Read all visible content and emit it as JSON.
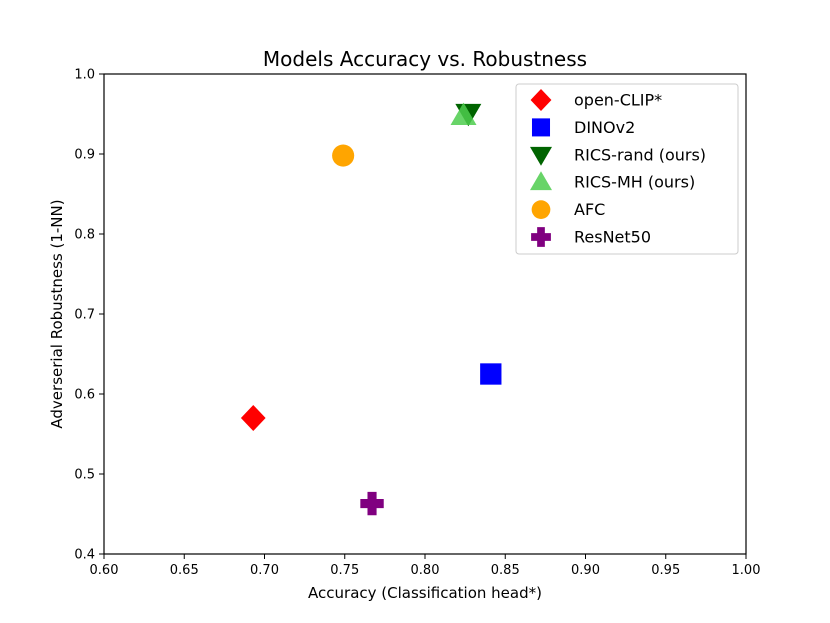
{
  "chart_data": {
    "type": "scatter",
    "title": "Models Accuracy vs. Robustness",
    "xlabel": "Accuracy (Classification head*)",
    "ylabel": "Adverserial Robustness (1-NN)",
    "xlim": [
      0.6,
      1.0
    ],
    "ylim": [
      0.4,
      1.0
    ],
    "xticks": [
      "0.60",
      "0.65",
      "0.70",
      "0.75",
      "0.80",
      "0.85",
      "0.90",
      "0.95",
      "1.00"
    ],
    "yticks": [
      "0.4",
      "0.5",
      "0.6",
      "0.7",
      "0.8",
      "0.9",
      "1.0"
    ],
    "grid": false,
    "legend_position": "top-right",
    "series": [
      {
        "name": "open-CLIP*",
        "marker": "diamond",
        "color": "#ff0000",
        "x": [
          0.693
        ],
        "y": [
          0.57
        ]
      },
      {
        "name": "DINOv2",
        "marker": "square",
        "color": "#0000ff",
        "x": [
          0.841
        ],
        "y": [
          0.625
        ]
      },
      {
        "name": "RICS-rand (ours)",
        "marker": "triangle-down",
        "color": "#006400",
        "x": [
          0.827
        ],
        "y": [
          0.951
        ]
      },
      {
        "name": "RICS-MH (ours)",
        "marker": "triangle-up",
        "color": "#4dcc4d",
        "x": [
          0.824
        ],
        "y": [
          0.948
        ]
      },
      {
        "name": "AFC",
        "marker": "circle",
        "color": "#ffa500",
        "x": [
          0.749
        ],
        "y": [
          0.898
        ]
      },
      {
        "name": "ResNet50",
        "marker": "plus",
        "color": "#800080",
        "x": [
          0.767
        ],
        "y": [
          0.463
        ]
      }
    ]
  }
}
